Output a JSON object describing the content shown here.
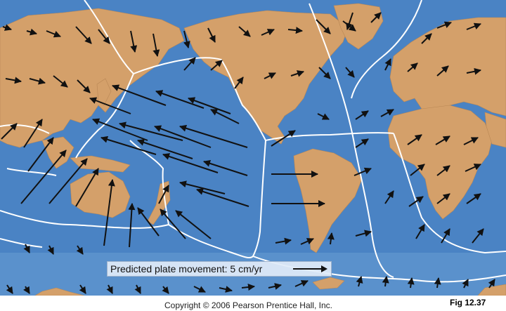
{
  "legend": {
    "label": "Predicted plate movement:  5 cm/yr"
  },
  "footer": {
    "copyright": "Copyright © 2006 Pearson Prentice Hall, Inc.",
    "figure": "Fig 12.37"
  },
  "colors": {
    "ocean": "#4a83c4",
    "land": "#d4a06a",
    "boundary": "#ffffff",
    "arrow": "#111111"
  },
  "icons": {
    "legend_arrow": "right-arrow-icon"
  }
}
